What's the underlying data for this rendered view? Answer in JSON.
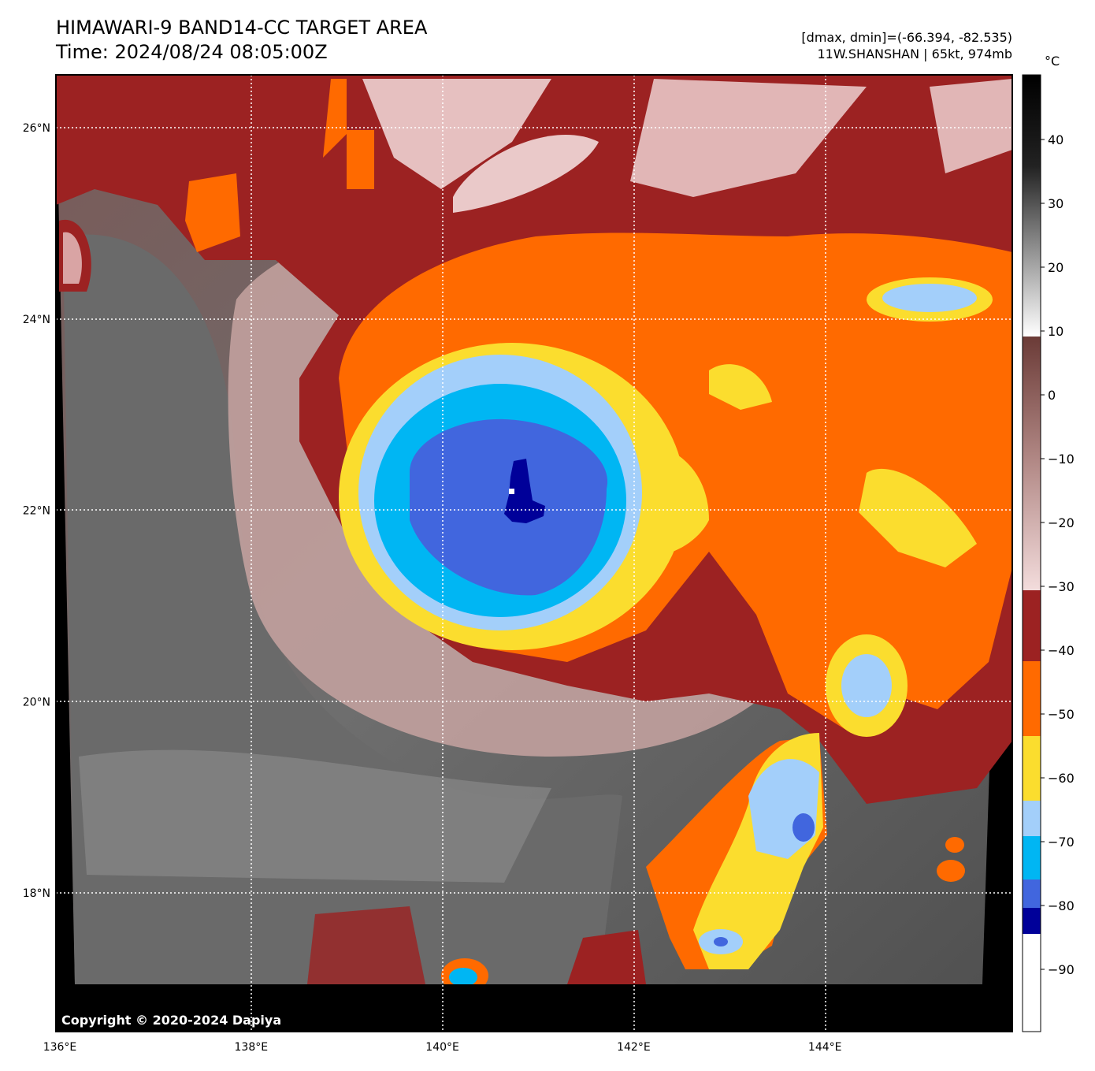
{
  "header": {
    "title_line1": "HIMAWARI-9 BAND14-CC TARGET AREA",
    "title_line2": "Time: 2024/08/24 08:05:00Z",
    "info_line1": "[dmax, dmin]=(-66.394, -82.535)",
    "info_line2": "11W.SHANSHAN | 65kt, 974mb"
  },
  "copyright": "Copyright © 2020-2024 Dapiya",
  "map": {
    "lat_labels": [
      "26°N",
      "24°N",
      "22°N",
      "20°N",
      "18°N"
    ],
    "lon_labels": [
      "136°E",
      "138°E",
      "140°E",
      "142°E",
      "144°E"
    ],
    "lat_values": [
      26,
      24,
      22,
      20,
      18
    ],
    "lon_values": [
      136,
      138,
      140,
      142,
      144
    ],
    "storm_center": {
      "lat": 22.0,
      "lon": 140.8
    }
  },
  "colorbar": {
    "unit": "°C",
    "tick_labels": [
      "40",
      "30",
      "20",
      "10",
      "0",
      "−10",
      "−20",
      "−30",
      "−40",
      "−50",
      "−60",
      "−70",
      "−80",
      "−90"
    ],
    "tick_values": [
      40,
      30,
      20,
      10,
      0,
      -10,
      -20,
      -30,
      -40,
      -50,
      -60,
      -70,
      -80,
      -90
    ],
    "range": [
      -100,
      50
    ],
    "colors": {
      "warm_top": "#000000",
      "gray_mid": "#8a8a8a",
      "white_10": "#ffffff",
      "brown_9": "#6b3b37",
      "pink_-30": "#f3dcdc",
      "darkred": "#9c2222",
      "orange": "#ff6a00",
      "yellow": "#fbdd2e",
      "lightblue": "#a3cffa",
      "cyan": "#00b6f3",
      "royalblue": "#4166de",
      "navy": "#000099",
      "white_cold": "#ffffff"
    }
  }
}
